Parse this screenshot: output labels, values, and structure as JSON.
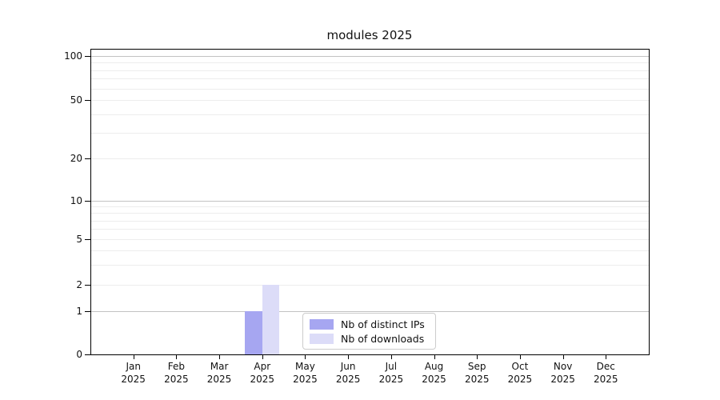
{
  "chart_data": {
    "type": "bar",
    "title": "modules 2025",
    "categories": [
      "Jan",
      "Feb",
      "Mar",
      "Apr",
      "May",
      "Jun",
      "Jul",
      "Aug",
      "Sep",
      "Oct",
      "Nov",
      "Dec"
    ],
    "category_year": "2025",
    "series": [
      {
        "name": "Nb of distinct IPs",
        "color": "#a6a6f1",
        "values": [
          0,
          0,
          0,
          1,
          0,
          0,
          0,
          0,
          0,
          0,
          0,
          0
        ]
      },
      {
        "name": "Nb of downloads",
        "color": "#dcdcf8",
        "values": [
          0,
          0,
          0,
          2,
          0,
          0,
          0,
          0,
          0,
          0,
          0,
          0
        ]
      }
    ],
    "yticks": [
      0,
      1,
      2,
      5,
      10,
      20,
      50,
      100
    ],
    "ylim": [
      0,
      100
    ],
    "yscale": "symlog",
    "xlabel": "",
    "ylabel": "",
    "grid": "horizontal, log minor + major lines",
    "legend_position": "inside plot, lower center"
  },
  "colors": {
    "background": "#ffffff",
    "grid_minor": "#ededed",
    "grid_major": "#c2c2c2",
    "spine": "#000000",
    "legend_border": "#cccccc",
    "text": "#111111"
  }
}
